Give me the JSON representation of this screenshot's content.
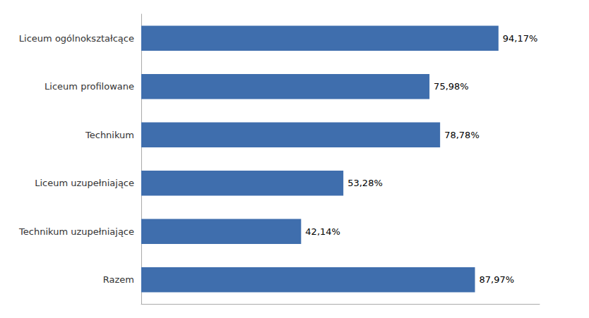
{
  "chart_data": {
    "type": "bar",
    "orientation": "horizontal",
    "categories": [
      "Razem",
      "Technikum uzupełniające",
      "Liceum uzupełniające",
      "Technikum",
      "Liceum profilowane",
      "Liceum ogólnokształcące"
    ],
    "values": [
      87.97,
      42.14,
      53.28,
      78.78,
      75.98,
      94.17
    ],
    "value_labels": [
      "87,97%",
      "42,14%",
      "53,28%",
      "78,78%",
      "75,98%",
      "94,17%"
    ],
    "color": "#3F6EAD",
    "xlim": [
      0,
      105
    ],
    "grid": false,
    "data_labels": true,
    "tick_labels": "y"
  }
}
